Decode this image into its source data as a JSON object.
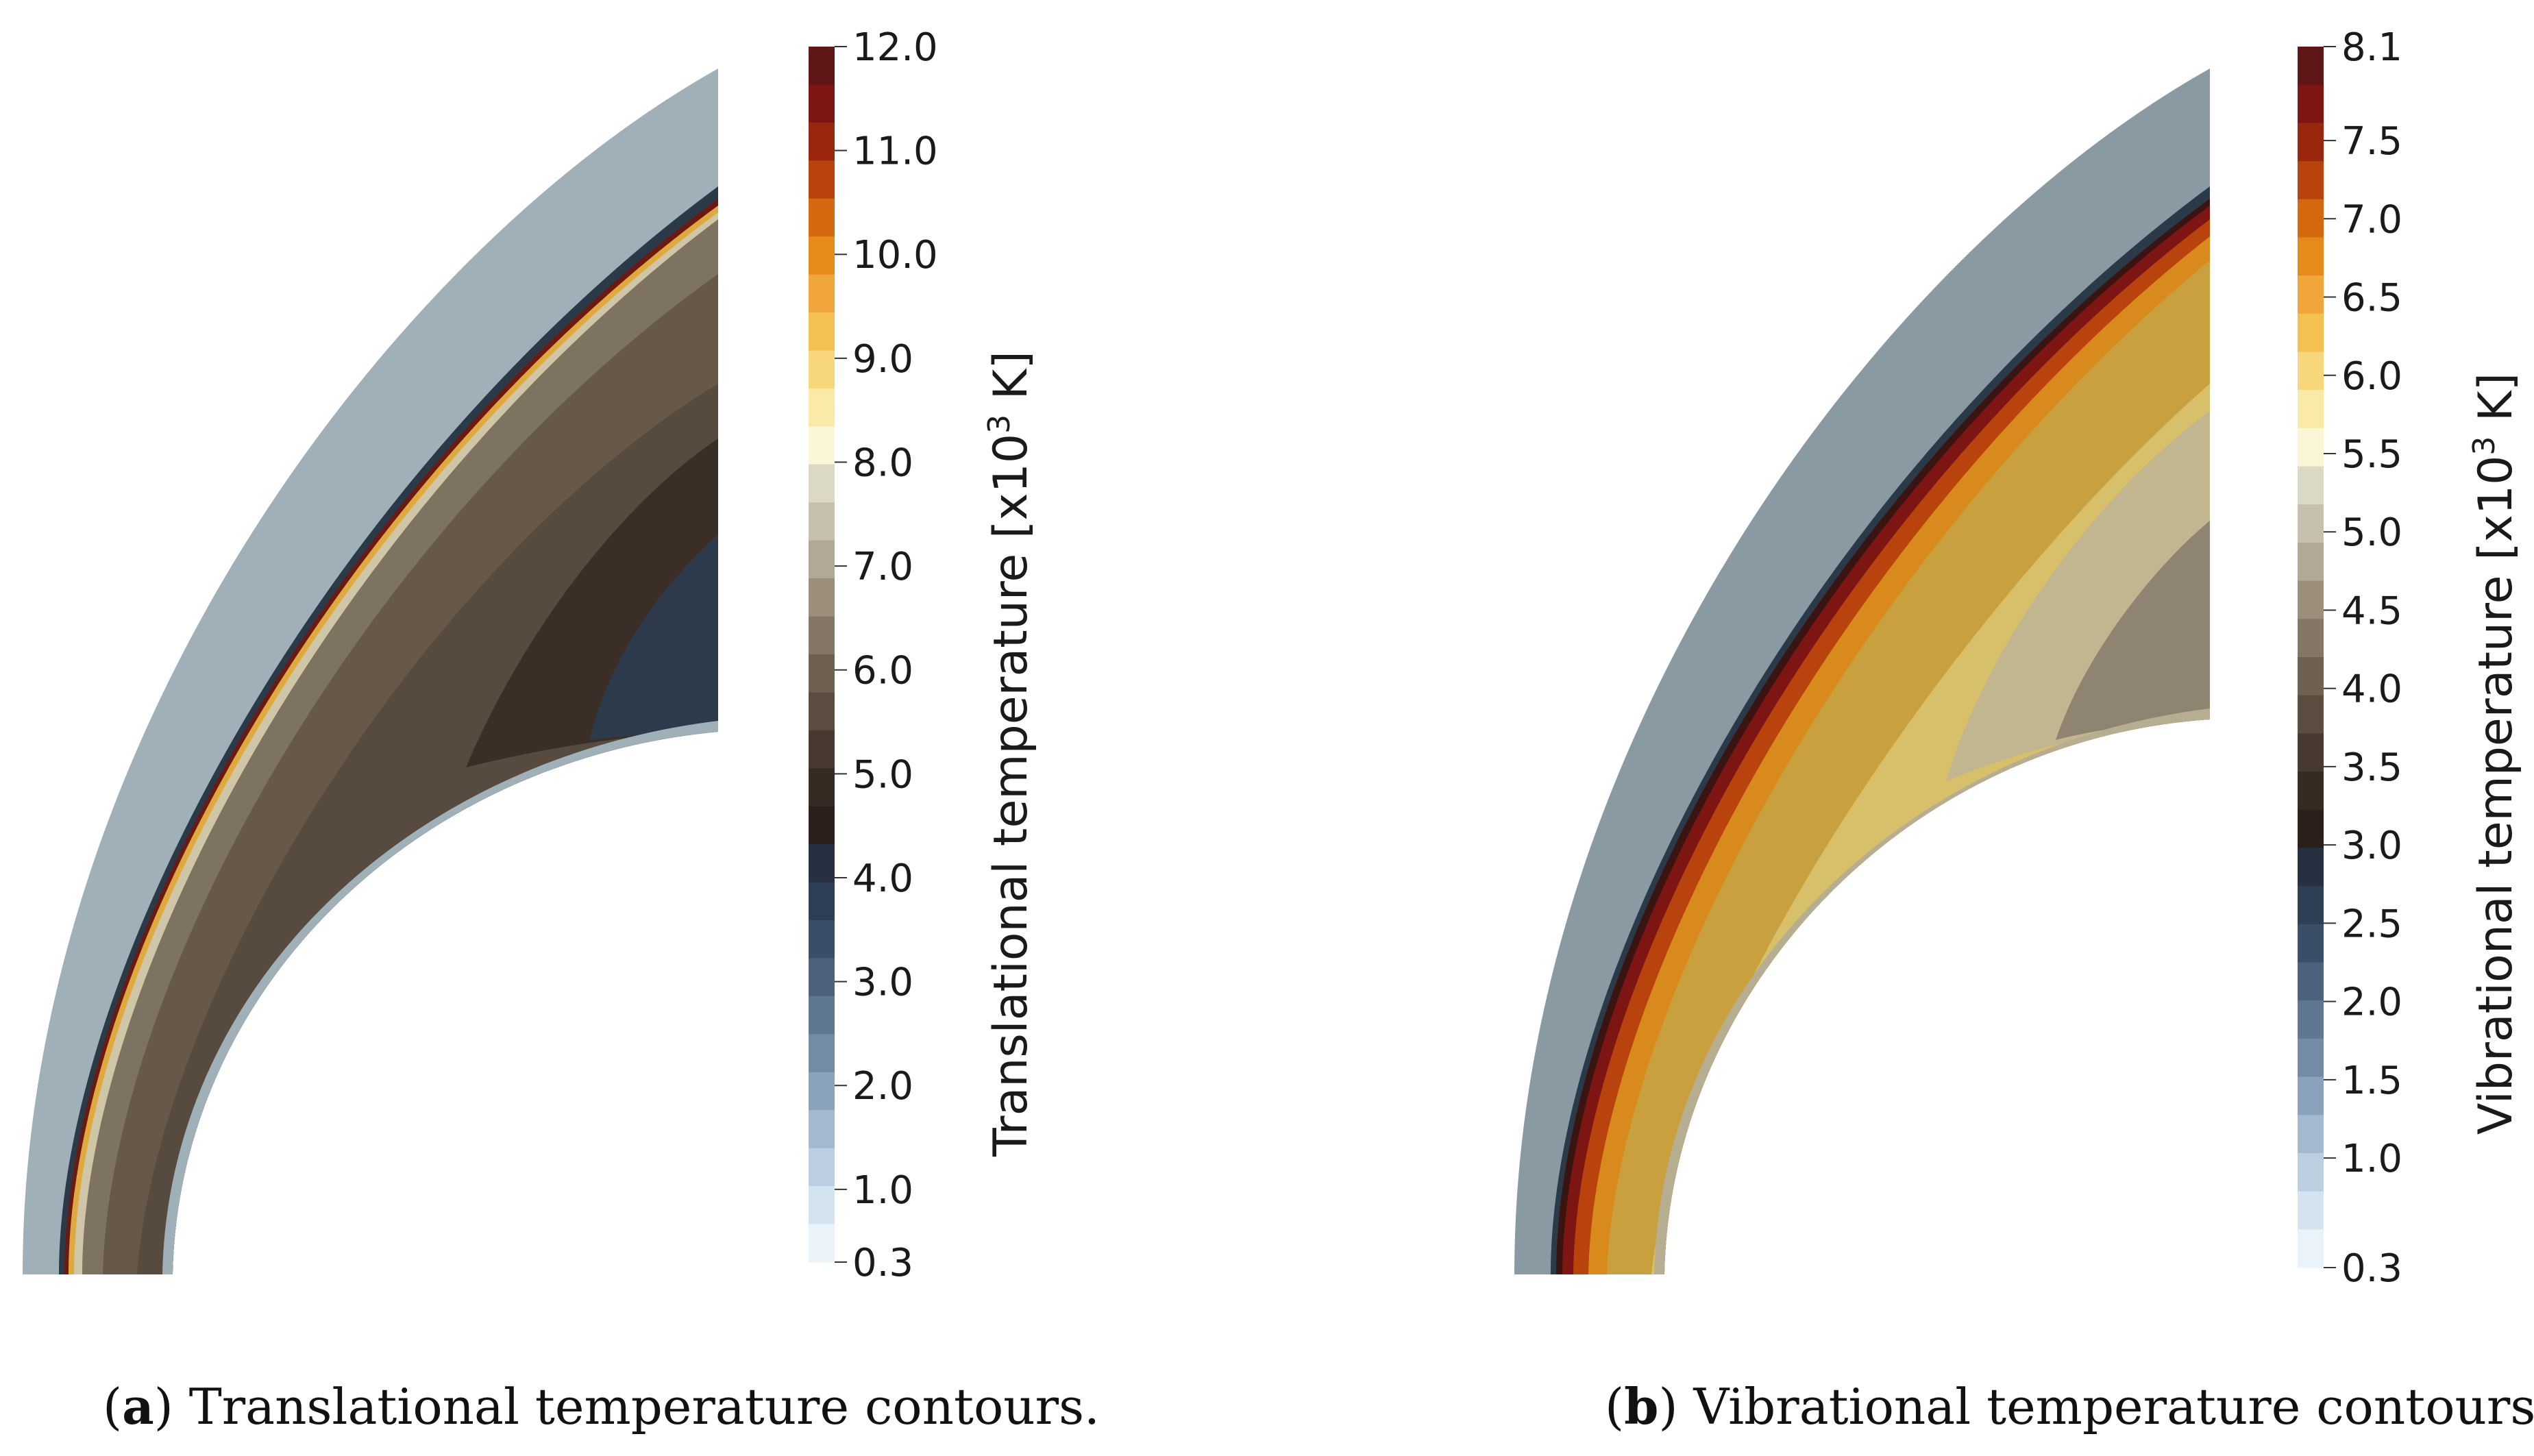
{
  "figure": {
    "panels": [
      {
        "id": "a",
        "caption_label": "a",
        "caption_text": "Translational temperature contours.",
        "colorbar": {
          "title_prefix": "Translational temperature [x10",
          "title_exponent": "3",
          "title_suffix": " K]",
          "min": 0.3,
          "max": 12.0,
          "tick_labels": [
            "12.0",
            "11.0",
            "10.0",
            "9.0",
            "8.0",
            "7.0",
            "6.0",
            "5.0",
            "4.0",
            "3.0",
            "2.0",
            "1.0",
            "0.3"
          ],
          "tick_values": [
            12.0,
            11.0,
            10.0,
            9.0,
            8.0,
            7.0,
            6.0,
            5.0,
            4.0,
            3.0,
            2.0,
            1.0,
            0.3
          ],
          "colors_top_to_bottom": [
            "#5e1616",
            "#7d1512",
            "#9a260e",
            "#b8430c",
            "#d4690f",
            "#e68a1a",
            "#f0a63a",
            "#f5c052",
            "#f8d77c",
            "#faeaa8",
            "#fbf6d6",
            "#dcd8c6",
            "#c8c0ae",
            "#b3a895",
            "#9b8f7c",
            "#847765",
            "#6f6152",
            "#5b4d40",
            "#483a30",
            "#372a23",
            "#2a1f1b",
            "#263040",
            "#2e3e55",
            "#3b4e68",
            "#4c617d",
            "#5f7793",
            "#748ba6",
            "#8aa2bb",
            "#a2b9cf",
            "#bbcfe1",
            "#d3e3ef",
            "#e9f3f9"
          ]
        }
      },
      {
        "id": "b",
        "caption_label": "b",
        "caption_text": "Vibrational temperature contours.",
        "colorbar": {
          "title_prefix": "Vibrational temperature [x10",
          "title_exponent": "3",
          "title_suffix": " K]",
          "min": 0.3,
          "max": 8.1,
          "tick_labels": [
            "8.1",
            "7.5",
            "7.0",
            "6.5",
            "6.0",
            "5.5",
            "5.0",
            "4.5",
            "4.0",
            "3.5",
            "3.0",
            "2.5",
            "2.0",
            "1.5",
            "1.0",
            "0.3"
          ],
          "tick_values": [
            8.1,
            7.5,
            7.0,
            6.5,
            6.0,
            5.5,
            5.0,
            4.5,
            4.0,
            3.5,
            3.0,
            2.5,
            2.0,
            1.5,
            1.0,
            0.3
          ],
          "colors_top_to_bottom": [
            "#5e1616",
            "#7d1512",
            "#9a260e",
            "#b8430c",
            "#d4690f",
            "#e68a1a",
            "#f0a63a",
            "#f5c052",
            "#f8d77c",
            "#faeaa8",
            "#fbf6d6",
            "#dcd8c6",
            "#c8c0ae",
            "#b3a895",
            "#9b8f7c",
            "#847765",
            "#6f6152",
            "#5b4d40",
            "#483a30",
            "#372a23",
            "#2a1f1b",
            "#263040",
            "#2e3e55",
            "#3b4e68",
            "#4c617d",
            "#5f7793",
            "#748ba6",
            "#8aa2bb",
            "#a2b9cf",
            "#bbcfe1",
            "#d3e3ef",
            "#e9f3f9"
          ]
        }
      }
    ]
  }
}
